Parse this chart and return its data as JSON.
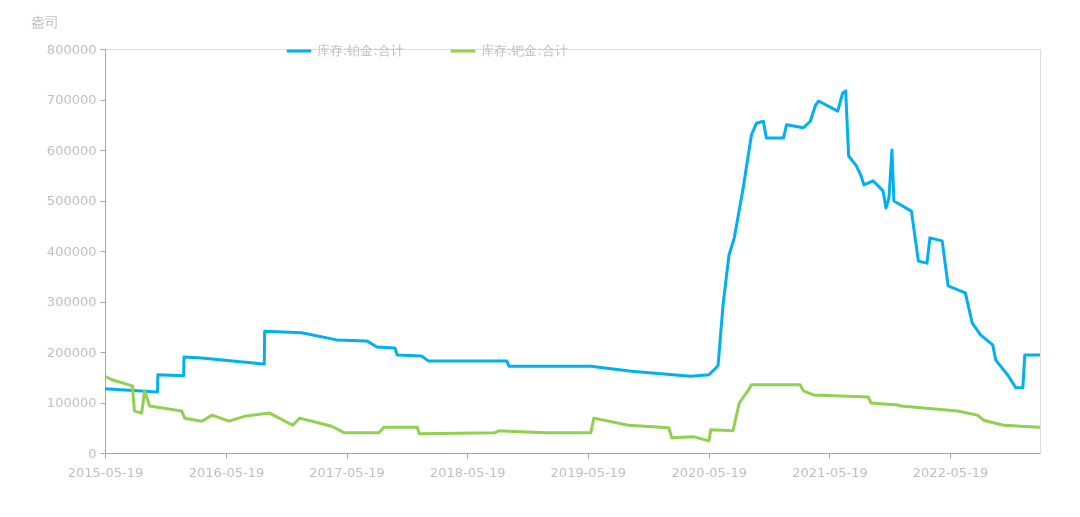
{
  "chart_data": {
    "type": "line",
    "ylabel": "盎司",
    "legend": "top",
    "marker": "none",
    "line_style": "solid",
    "grid": false,
    "xlim": [
      "2015-05-19",
      "2023-02-15"
    ],
    "xticks": [
      "2015-05-19",
      "2016-05-19",
      "2017-05-19",
      "2018-05-19",
      "2019-05-19",
      "2020-05-19",
      "2021-05-19",
      "2022-05-19"
    ],
    "ylim": [
      0,
      800000
    ],
    "yticks": [
      0,
      100000,
      200000,
      300000,
      400000,
      500000,
      600000,
      700000,
      800000
    ],
    "series": [
      {
        "name": "库存:铂金:合计",
        "color": "#00b0f0",
        "x": [
          "2015-05-19",
          "2015-10-25",
          "2015-10-26",
          "2016-01-12",
          "2016-01-13",
          "2016-03-07",
          "2016-09-12",
          "2016-09-13",
          "2017-01-03",
          "2017-04-19",
          "2017-07-19",
          "2017-08-19",
          "2017-10-12",
          "2017-10-19",
          "2018-01-01",
          "2018-01-22",
          "2018-09-16",
          "2018-09-22",
          "2019-05-28",
          "2019-09-28",
          "2020-03-25",
          "2020-05-19",
          "2020-06-09",
          "2020-06-16",
          "2020-07-01",
          "2020-07-19",
          "2020-08-04",
          "2020-08-31",
          "2020-09-25",
          "2020-10-10",
          "2020-10-31",
          "2020-11-09",
          "2020-12-31",
          "2021-01-09",
          "2021-03-01",
          "2021-03-22",
          "2021-04-07",
          "2021-04-16",
          "2021-06-13",
          "2021-06-28",
          "2021-07-07",
          "2021-07-16",
          "2021-08-07",
          "2021-08-22",
          "2021-08-31",
          "2021-09-28",
          "2021-10-28",
          "2021-11-06",
          "2021-11-15",
          "2021-11-24",
          "2021-11-30",
          "2022-01-22",
          "2022-02-12",
          "2022-03-10",
          "2022-03-19",
          "2022-04-25",
          "2022-05-13",
          "2022-07-04",
          "2022-07-25",
          "2022-08-19",
          "2022-09-25",
          "2022-10-04",
          "2022-11-10",
          "2022-12-04",
          "2022-12-25",
          "2022-12-31",
          "2023-02-15"
        ],
        "values": [
          127000,
          121000,
          155000,
          153000,
          190000,
          188000,
          176000,
          241000,
          238000,
          224000,
          222000,
          210000,
          208000,
          194000,
          192000,
          182000,
          182000,
          172000,
          172000,
          162000,
          152000,
          155000,
          168000,
          174000,
          293000,
          392000,
          426000,
          525000,
          630000,
          653000,
          657000,
          624000,
          624000,
          650000,
          644000,
          657000,
          689000,
          697000,
          677000,
          713000,
          717000,
          588000,
          570000,
          550000,
          531000,
          539000,
          519000,
          485000,
          505000,
          600000,
          499000,
          479000,
          380000,
          376000,
          426000,
          420000,
          331000,
          317000,
          257000,
          234000,
          214000,
          184000,
          154000,
          129000,
          129000,
          194000,
          194000
        ]
      },
      {
        "name": "库存:钯金:合计",
        "color": "#92d050",
        "x": [
          "2015-05-19",
          "2015-06-09",
          "2015-08-10",
          "2015-08-16",
          "2015-09-07",
          "2015-09-16",
          "2015-10-01",
          "2016-01-06",
          "2016-01-15",
          "2016-03-07",
          "2016-04-07",
          "2016-05-28",
          "2016-07-16",
          "2016-09-28",
          "2016-12-07",
          "2016-12-28",
          "2017-04-04",
          "2017-05-13",
          "2017-08-25",
          "2017-09-09",
          "2017-12-19",
          "2017-12-25",
          "2018-08-10",
          "2018-08-22",
          "2019-01-10",
          "2019-05-28",
          "2019-06-06",
          "2019-09-19",
          "2020-01-19",
          "2020-01-28",
          "2020-04-04",
          "2020-05-19",
          "2020-05-25",
          "2020-07-31",
          "2020-08-19",
          "2020-09-16",
          "2020-09-25",
          "2021-02-19",
          "2021-03-01",
          "2021-04-01",
          "2021-09-13",
          "2021-09-22",
          "2021-12-12",
          "2021-12-22",
          "2022-06-10",
          "2022-08-10",
          "2022-08-28",
          "2022-10-28",
          "2022-12-19",
          "2023-02-15"
        ],
        "values": [
          152000,
          145000,
          133000,
          83000,
          79000,
          123000,
          93000,
          83000,
          69000,
          63000,
          75000,
          63000,
          73000,
          79000,
          55000,
          69000,
          53000,
          40000,
          40000,
          51000,
          51000,
          38000,
          40000,
          44000,
          40000,
          40000,
          69000,
          55000,
          50000,
          30000,
          32000,
          24000,
          46000,
          44000,
          99000,
          125000,
          135000,
          135000,
          123000,
          115000,
          111000,
          99000,
          95000,
          93000,
          83000,
          75000,
          65000,
          55000,
          53000,
          51000
        ]
      }
    ]
  }
}
